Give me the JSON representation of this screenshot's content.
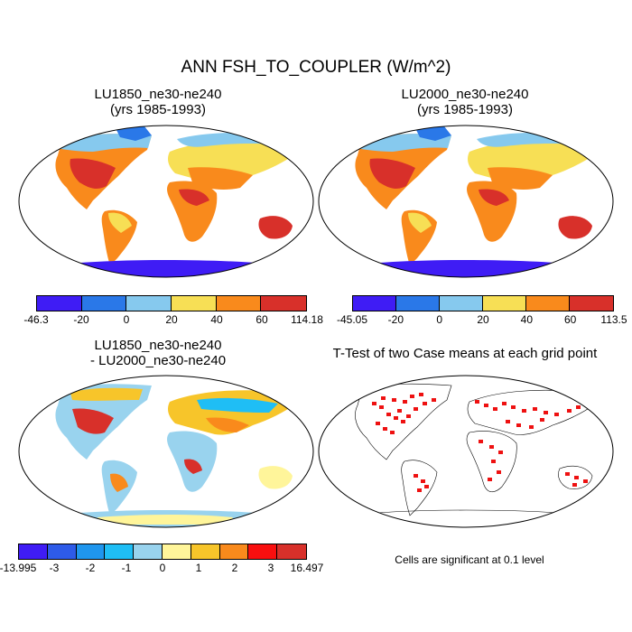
{
  "title": "ANN FSH_TO_COUPLER (W/m^2)",
  "panels": [
    {
      "title_line1": "LU1850_ne30-ne240",
      "title_line2": "(yrs 1985-1993)"
    },
    {
      "title_line1": "LU2000_ne30-ne240",
      "title_line2": "(yrs 1985-1993)"
    },
    {
      "title_line1": "LU1850_ne30-ne240",
      "title_line2": "- LU2000_ne30-ne240"
    },
    {
      "title_line1": "T-Test of two Case means at each grid point"
    }
  ],
  "colorbars": [
    {
      "colors": [
        "#3f1cf5",
        "#2a78e8",
        "#86c9ee",
        "#f7df55",
        "#f98a1c",
        "#d8302a"
      ],
      "labels": [
        "-46.3",
        "-20",
        "0",
        "20",
        "40",
        "60",
        "114.18"
      ]
    },
    {
      "colors": [
        "#3f1cf5",
        "#2a78e8",
        "#86c9ee",
        "#f7df55",
        "#f98a1c",
        "#d8302a"
      ],
      "labels": [
        "-45.05",
        "-20",
        "0",
        "20",
        "40",
        "60",
        "113.5"
      ]
    },
    {
      "colors": [
        "#3f1cf5",
        "#2e5be8",
        "#1f96ee",
        "#1fbef5",
        "#99d3ee",
        "#fff59a",
        "#f7c52a",
        "#f98a1c",
        "#f90f0f",
        "#d8302a"
      ],
      "labels": [
        "-13.995",
        "-3",
        "-2",
        "-1",
        "0",
        "1",
        "2",
        "3",
        "16.497"
      ]
    }
  ],
  "significance_note": "Cells are significant at 0.1 level",
  "significance_color": "#ee1111"
}
